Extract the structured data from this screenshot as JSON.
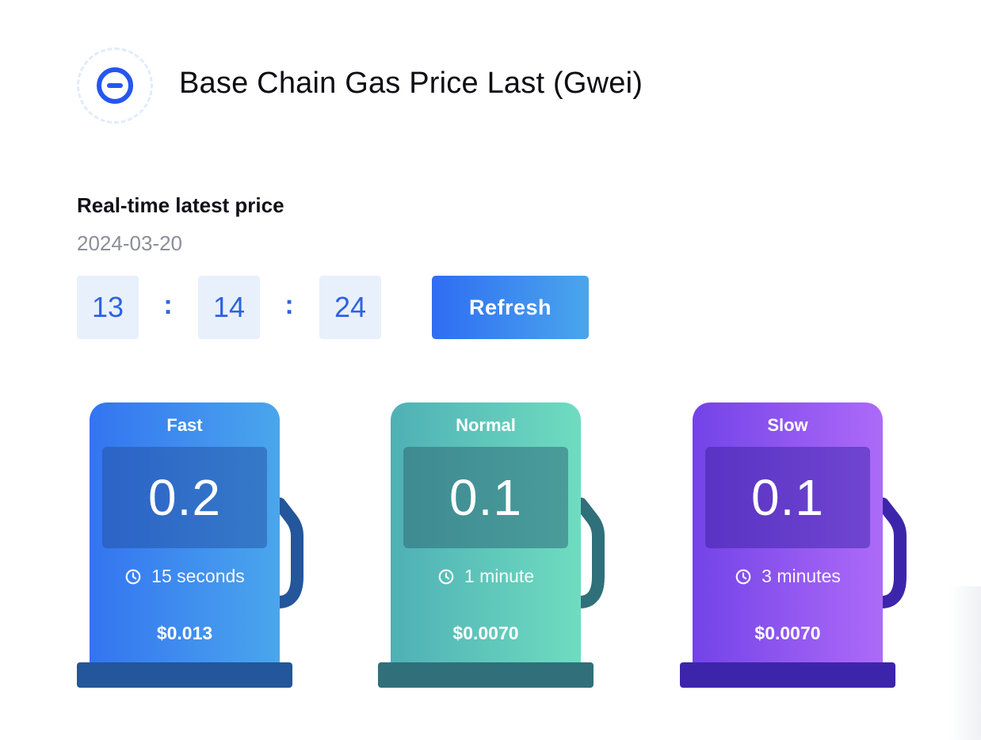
{
  "header": {
    "logo_icon": "base-chain-logo-icon",
    "title": "Base Chain Gas Price Last (Gwei)"
  },
  "realtime": {
    "heading": "Real-time latest price",
    "date": "2024-03-20",
    "clock": {
      "hours": "13",
      "minutes": "14",
      "seconds": "24",
      "separator": ":"
    },
    "refresh_label": "Refresh"
  },
  "pumps": [
    {
      "label": "Fast",
      "price": "0.2",
      "time": "15 seconds",
      "usd": "$0.013",
      "time_icon": "clock-icon",
      "color": "#3474f1"
    },
    {
      "label": "Normal",
      "price": "0.1",
      "time": "1 minute",
      "usd": "$0.0070",
      "time_icon": "clock-icon",
      "color": "#4fb0b5"
    },
    {
      "label": "Slow",
      "price": "0.1",
      "time": "3 minutes",
      "usd": "$0.0070",
      "time_icon": "clock-icon",
      "color": "#7343e8"
    }
  ],
  "colors": {
    "accent": "#2e63e0",
    "clock_box_bg": "#e8f0fc",
    "fast_hose": "#23569a",
    "normal_hose": "#2f707a",
    "slow_hose": "#3d25ab"
  }
}
